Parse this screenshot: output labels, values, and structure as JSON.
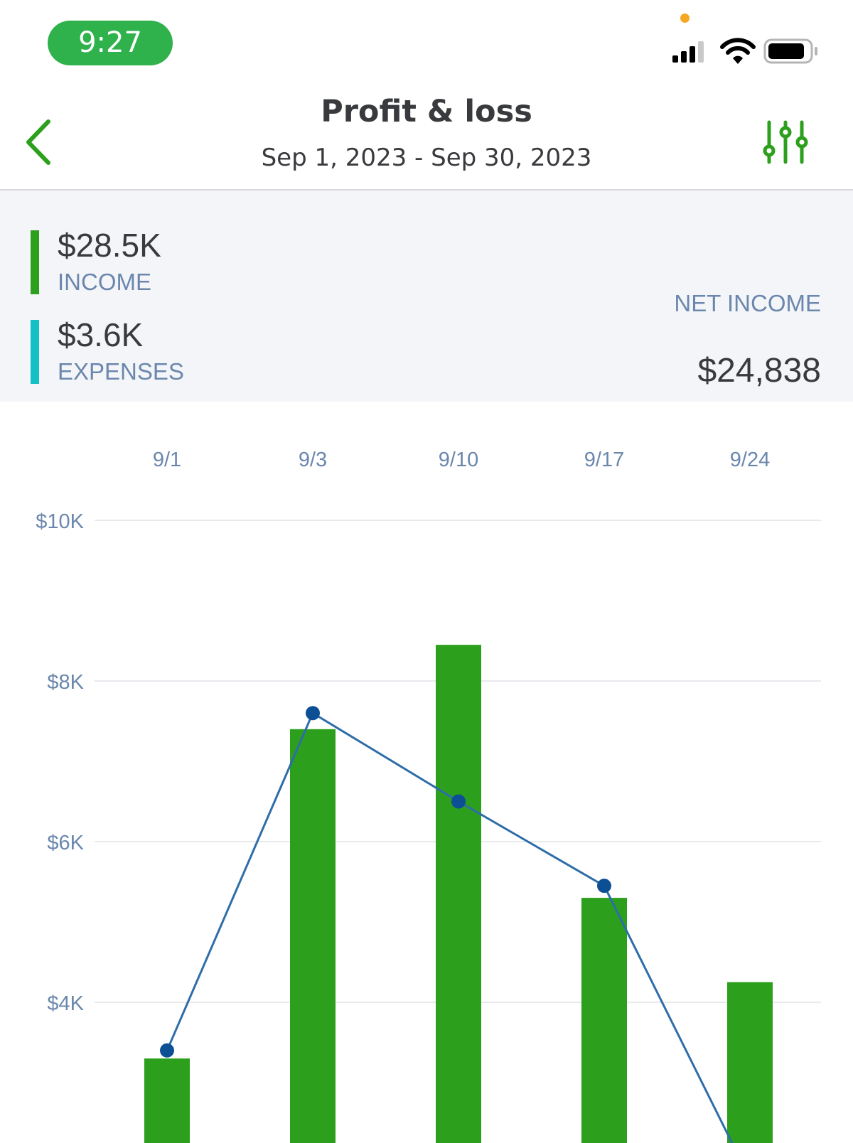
{
  "status_bar": {
    "time": "9:27",
    "mic_indicator_color": "#f5a623",
    "icons": [
      "cellular-signal-icon",
      "wifi-icon",
      "battery-icon"
    ]
  },
  "header": {
    "title": "Profit & loss",
    "date_range": "Sep 1, 2023 - Sep 30, 2023",
    "back_icon": "chevron-left-icon",
    "filter_icon": "sliders-icon"
  },
  "summary": {
    "income": {
      "value": "$28.5K",
      "label": "INCOME",
      "color": "#2ca01c"
    },
    "expenses": {
      "value": "$3.6K",
      "label": "EXPENSES",
      "color": "#13c1c4"
    },
    "net_income": {
      "label": "NET INCOME",
      "value": "$24,838"
    }
  },
  "colors": {
    "accent": "#2ca01c",
    "panel_background": "#f4f5f8",
    "label_blue": "#6b87ad",
    "line": "#2e6da8",
    "point": "#0d4f95"
  },
  "chart_data": {
    "type": "bar",
    "categories": [
      "9/1",
      "9/3",
      "9/10",
      "9/17",
      "9/24"
    ],
    "y_tick_labels": [
      "$10K",
      "$8K",
      "$6K",
      "$4K"
    ],
    "y_ticks": [
      10000,
      8000,
      6000,
      4000
    ],
    "ylim": [
      1800,
      10000
    ],
    "grid": true,
    "series": [
      {
        "type": "bar",
        "values": [
          3300,
          7400,
          8450,
          5300,
          4250
        ]
      },
      {
        "type": "line",
        "values": [
          3400,
          7600,
          6500,
          5450,
          1800
        ]
      }
    ]
  }
}
